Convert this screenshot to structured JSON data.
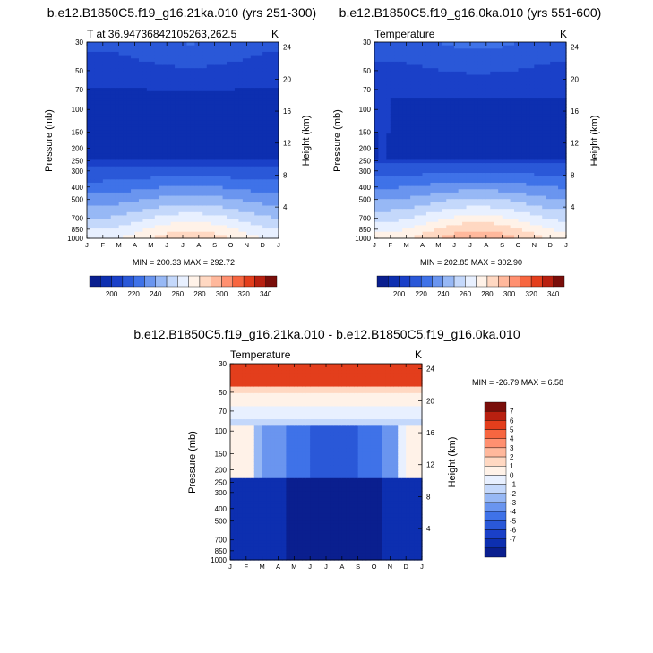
{
  "colors": {
    "scale": [
      "#0a1f8f",
      "#0d2fb0",
      "#1a40c8",
      "#2a58d8",
      "#3f72e8",
      "#6a95ef",
      "#97b8f5",
      "#c4d8fb",
      "#e8f0ff",
      "#fff2e8",
      "#ffd8c2",
      "#ffb89c",
      "#ff9070",
      "#f76640",
      "#e33e1c",
      "#b82010",
      "#7a0e0a"
    ],
    "diff_scale": [
      "#0a1f8f",
      "#0d2fb0",
      "#1a40c8",
      "#2a58d8",
      "#3f72e8",
      "#6a95ef",
      "#97b8f5",
      "#c4d8fb",
      "#e8f0ff",
      "#fff2e8",
      "#ffd8c2",
      "#ffb89c",
      "#ff9070",
      "#f76640",
      "#e33e1c",
      "#b82010",
      "#7a0e0a"
    ]
  },
  "chart_data": [
    {
      "type": "heatmap",
      "title": "b.e12.B1850C5.f19_g16.21ka.010 (yrs 251-300)",
      "left_label": "T at 36.94736842105263,262.5",
      "right_label": "K",
      "xlabel": "",
      "ylabel": "Pressure (mb)",
      "ylabel2": "Height (km)",
      "x_ticks": [
        "J",
        "F",
        "M",
        "A",
        "M",
        "J",
        "J",
        "A",
        "S",
        "O",
        "N",
        "D",
        "J"
      ],
      "y_ticks": [
        "30",
        "50",
        "70",
        "100",
        "150",
        "200",
        "250",
        "300",
        "400",
        "500",
        "700",
        "850",
        "1000"
      ],
      "y2_ticks": [
        "24",
        "20",
        "16",
        "12",
        "8",
        "4"
      ],
      "stats": "MIN = 200.33 MAX = 292.72",
      "colorbar": {
        "labels": [
          "200",
          "220",
          "240",
          "260",
          "280",
          "300",
          "320",
          "340"
        ],
        "levels": [
          190,
          200,
          210,
          220,
          230,
          240,
          250,
          260,
          270,
          280,
          290,
          300,
          310,
          320,
          330,
          340,
          350
        ]
      },
      "ylim_mb": [
        1000,
        30
      ],
      "profile": {
        "surface_summer": 292.72,
        "surface_winter": 272,
        "minimum": 200.33
      }
    },
    {
      "type": "heatmap",
      "title": "b.e12.B1850C5.f19_g16.0ka.010 (yrs 551-600)",
      "left_label": "Temperature",
      "right_label": "K",
      "xlabel": "",
      "ylabel": "Pressure (mb)",
      "ylabel2": "Height (km)",
      "x_ticks": [
        "J",
        "F",
        "M",
        "A",
        "M",
        "J",
        "J",
        "A",
        "S",
        "O",
        "N",
        "D",
        "J"
      ],
      "y_ticks": [
        "30",
        "50",
        "70",
        "100",
        "150",
        "200",
        "250",
        "300",
        "400",
        "500",
        "700",
        "850",
        "1000"
      ],
      "y2_ticks": [
        "24",
        "20",
        "16",
        "12",
        "8",
        "4"
      ],
      "stats": "MIN = 202.85 MAX = 302.90",
      "colorbar": {
        "labels": [
          "200",
          "220",
          "240",
          "260",
          "280",
          "300",
          "320",
          "340"
        ],
        "levels": [
          190,
          200,
          210,
          220,
          230,
          240,
          250,
          260,
          270,
          280,
          290,
          300,
          310,
          320,
          330,
          340,
          350
        ]
      },
      "ylim_mb": [
        1000,
        30
      ],
      "profile": {
        "surface_summer": 302.9,
        "surface_winter": 280,
        "minimum": 202.85
      }
    },
    {
      "type": "heatmap",
      "title": "b.e12.B1850C5.f19_g16.21ka.010 - b.e12.B1850C5.f19_g16.0ka.010",
      "left_label": "Temperature",
      "right_label": "K",
      "xlabel": "",
      "ylabel": "Pressure (mb)",
      "ylabel2": "Height (km)",
      "x_ticks": [
        "J",
        "F",
        "M",
        "A",
        "M",
        "J",
        "J",
        "A",
        "S",
        "O",
        "N",
        "D",
        "J"
      ],
      "y_ticks": [
        "30",
        "50",
        "70",
        "100",
        "150",
        "200",
        "250",
        "300",
        "400",
        "500",
        "700",
        "850",
        "1000"
      ],
      "y2_ticks": [
        "24",
        "20",
        "16",
        "12",
        "8",
        "4"
      ],
      "stats": "MIN = -26.79 MAX =   6.58",
      "colorbar": {
        "labels": [
          "7",
          "6",
          "5",
          "4",
          "3",
          "2",
          "1",
          "0",
          "-1",
          "-2",
          "-3",
          "-4",
          "-5",
          "-6",
          "-7"
        ]
      },
      "ylim_mb": [
        1000,
        30
      ]
    }
  ]
}
